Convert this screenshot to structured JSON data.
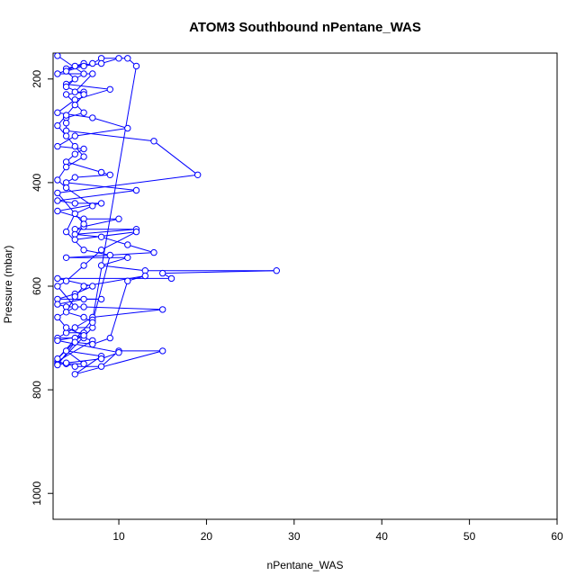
{
  "chart_data": {
    "type": "scatter",
    "title": "ATOM3 Southbound nPentane_WAS",
    "xlabel": "nPentane_WAS",
    "ylabel": "Pressure (mbar)",
    "xlim": [
      2.5,
      60
    ],
    "ylim": [
      1050,
      150
    ],
    "y_reversed": true,
    "x_ticks": [
      10,
      20,
      30,
      40,
      50,
      60
    ],
    "y_ticks": [
      200,
      400,
      600,
      800,
      1000
    ],
    "grid": false,
    "legend": "none",
    "colors": {
      "series": "#0000ff",
      "axis": "#000000"
    },
    "series": [
      {
        "style": "line+points",
        "points": [
          [
            3,
            155
          ],
          [
            6,
            190
          ],
          [
            4,
            210
          ],
          [
            9,
            220
          ],
          [
            5,
            240
          ],
          [
            3,
            265
          ],
          [
            7,
            275
          ],
          [
            11,
            295
          ],
          [
            5,
            310
          ],
          [
            3,
            330
          ],
          [
            6,
            335
          ],
          [
            5,
            345
          ],
          [
            4,
            360
          ],
          [
            8,
            380
          ],
          [
            9,
            385
          ],
          [
            5,
            390
          ],
          [
            4,
            400
          ],
          [
            12,
            415
          ],
          [
            3,
            435
          ],
          [
            5,
            440
          ],
          [
            8,
            440
          ],
          [
            3,
            455
          ],
          [
            6,
            470
          ],
          [
            10,
            470
          ],
          [
            6,
            485
          ],
          [
            5,
            490
          ],
          [
            12,
            490
          ],
          [
            5,
            500
          ],
          [
            8,
            505
          ],
          [
            11,
            520
          ],
          [
            14,
            535
          ],
          [
            4,
            545
          ],
          [
            11,
            545
          ],
          [
            8,
            560
          ],
          [
            13,
            570
          ],
          [
            28,
            570
          ],
          [
            15,
            575
          ],
          [
            16,
            585
          ],
          [
            3,
            585
          ],
          [
            7,
            600
          ],
          [
            5,
            615
          ],
          [
            3,
            625
          ],
          [
            8,
            625
          ],
          [
            6,
            625
          ],
          [
            3,
            635
          ],
          [
            4,
            640
          ],
          [
            6,
            640
          ],
          [
            15,
            645
          ],
          [
            7,
            660
          ],
          [
            3,
            700
          ],
          [
            5,
            700
          ],
          [
            6,
            700
          ],
          [
            7,
            705
          ],
          [
            3,
            745
          ],
          [
            4,
            750
          ],
          [
            5,
            755
          ],
          [
            8,
            755
          ],
          [
            10,
            725
          ],
          [
            15,
            725
          ],
          [
            5,
            770
          ],
          [
            8,
            735
          ],
          [
            4,
            725
          ],
          [
            6,
            750
          ],
          [
            3,
            750
          ],
          [
            7,
            680
          ],
          [
            5,
            680
          ],
          [
            4,
            690
          ],
          [
            6,
            690
          ],
          [
            3,
            740
          ],
          [
            7,
            665
          ],
          [
            12,
            175
          ],
          [
            11,
            160
          ],
          [
            8,
            160
          ],
          [
            7,
            170
          ],
          [
            4,
            180
          ],
          [
            5,
            175
          ],
          [
            6,
            170
          ],
          [
            3,
            190
          ],
          [
            7,
            190
          ],
          [
            5,
            225
          ],
          [
            6,
            225
          ],
          [
            4,
            230
          ],
          [
            6,
            265
          ],
          [
            4,
            275
          ],
          [
            4,
            285
          ],
          [
            4,
            300
          ],
          [
            14,
            320
          ],
          [
            19,
            385
          ],
          [
            3,
            420
          ],
          [
            6,
            480
          ],
          [
            5,
            510
          ],
          [
            12,
            495
          ],
          [
            8,
            530
          ],
          [
            6,
            560
          ],
          [
            4,
            590
          ],
          [
            3,
            600
          ],
          [
            5,
            640
          ],
          [
            3,
            660
          ],
          [
            4,
            680
          ],
          [
            6,
            695
          ],
          [
            3,
            705
          ],
          [
            10,
            728
          ],
          [
            8,
            740
          ],
          [
            4,
            748
          ],
          [
            3,
            752
          ],
          [
            5,
            708
          ],
          [
            7,
            712
          ],
          [
            9,
            700
          ],
          [
            11,
            590
          ],
          [
            13,
            580
          ],
          [
            6,
            600
          ],
          [
            5,
            620
          ],
          [
            4,
            650
          ],
          [
            6,
            660
          ],
          [
            7,
            670
          ],
          [
            9,
            540
          ],
          [
            6,
            530
          ],
          [
            4,
            495
          ],
          [
            5,
            460
          ],
          [
            7,
            445
          ],
          [
            4,
            410
          ],
          [
            3,
            395
          ],
          [
            4,
            370
          ],
          [
            6,
            350
          ],
          [
            5,
            330
          ],
          [
            4,
            310
          ],
          [
            3,
            290
          ],
          [
            4,
            270
          ],
          [
            5,
            250
          ],
          [
            6,
            230
          ],
          [
            4,
            215
          ],
          [
            5,
            200
          ],
          [
            4,
            185
          ],
          [
            6,
            175
          ],
          [
            8,
            170
          ],
          [
            10,
            160
          ]
        ]
      }
    ]
  }
}
